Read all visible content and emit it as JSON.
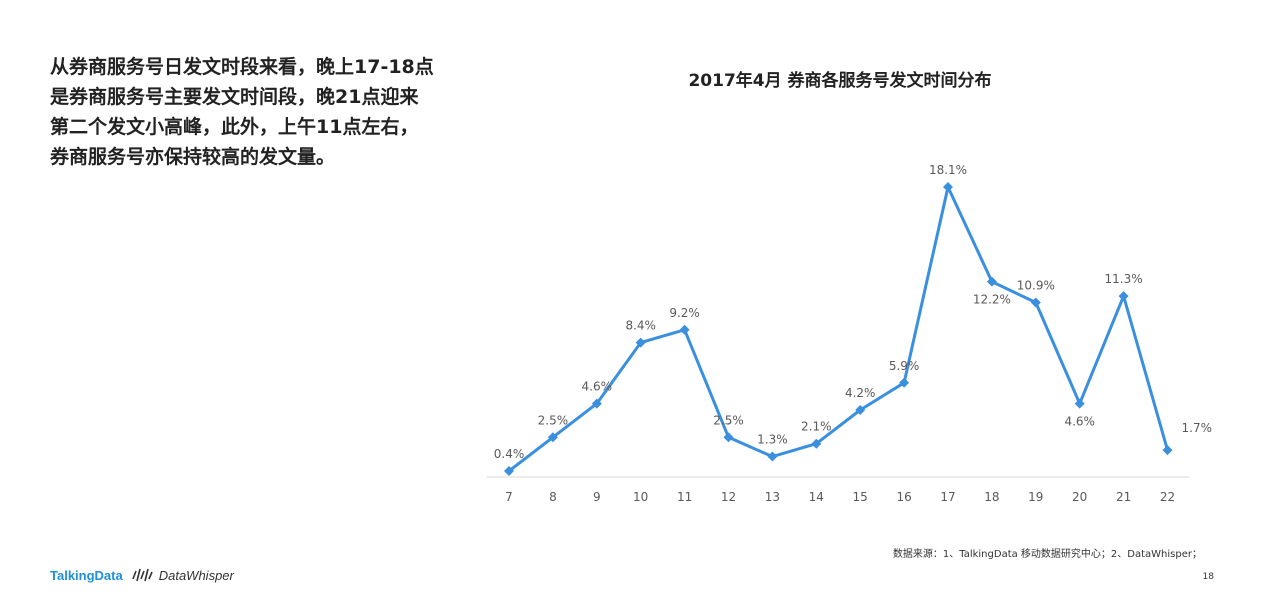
{
  "description": [
    "从券商服务号日发文时段来看，晚上17-18点",
    "是券商服务号主要发文时间段，晚21点迎来",
    "第二个发文小高峰，此外，上午11点左右，",
    "券商服务号亦保持较高的发文量。"
  ],
  "footer": {
    "source": "数据来源：1、TalkingData 移动数据研究中心；2、DataWhisper；",
    "page": "18",
    "brand_talking": "TalkingData",
    "brand_whisper": "DataWhisper"
  },
  "colors": {
    "line": "#3a8fde",
    "brand": "#1e8fd8",
    "axis": "#d9d9d9",
    "label": "#595959"
  },
  "chart_data": {
    "type": "line",
    "title": "2017年4月 券商各服务号发文时间分布",
    "categories": [
      "7",
      "8",
      "9",
      "10",
      "11",
      "12",
      "13",
      "14",
      "15",
      "16",
      "17",
      "18",
      "19",
      "20",
      "21",
      "22"
    ],
    "values": [
      0.4,
      2.5,
      4.6,
      8.4,
      9.2,
      2.5,
      1.3,
      2.1,
      4.2,
      5.9,
      18.1,
      12.2,
      10.9,
      4.6,
      11.3,
      1.7
    ],
    "data_labels": [
      "0.4%",
      "2.5%",
      "4.6%",
      "8.4%",
      "9.2%",
      "2.5%",
      "1.3%",
      "2.1%",
      "4.2%",
      "5.9%",
      "18.1%",
      "12.2%",
      "10.9%",
      "4.6%",
      "11.3%",
      "1.7%"
    ],
    "label_positions": [
      "above",
      "above",
      "above",
      "above",
      "above",
      "above",
      "above",
      "above",
      "above",
      "above",
      "above",
      "below",
      "above",
      "below",
      "above",
      "right"
    ],
    "marker": "diamond",
    "xlabel": "",
    "ylabel": "",
    "ylim": [
      0,
      20
    ],
    "grid": false,
    "legend": "none"
  }
}
